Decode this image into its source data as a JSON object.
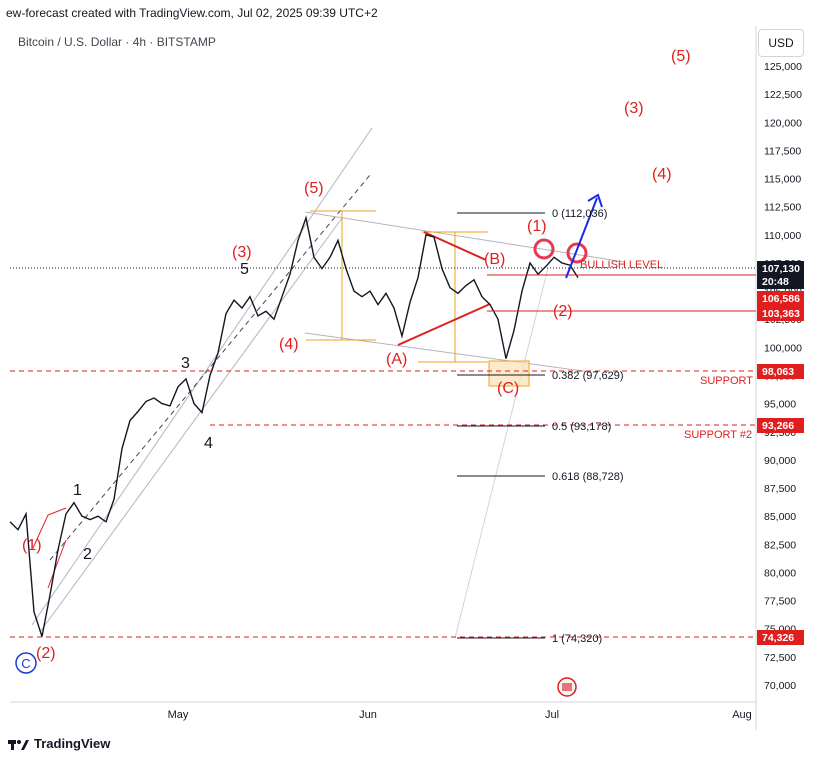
{
  "header": {
    "attribution": "ew-forecast created with TradingView.com, Jul 02, 2025 09:39 UTC+2",
    "title": "Bitcoin / U.S. Dollar · 4h · BITSTAMP",
    "currency": "USD"
  },
  "footer": {
    "brand": "TradingView"
  },
  "chart_data": {
    "type": "line",
    "title": "Bitcoin / U.S. Dollar · 4h · BITSTAMP",
    "ylabel": "USD",
    "ylim": [
      68000,
      127000
    ],
    "y_ticks": [
      "125,000",
      "122,500",
      "120,000",
      "117,500",
      "115,000",
      "112,500",
      "110,000",
      "107,500",
      "105,000",
      "102,500",
      "100,000",
      "97,500",
      "95,000",
      "92,500",
      "90,000",
      "87,500",
      "85,000",
      "82,500",
      "80,000",
      "77,500",
      "75,000",
      "72,500",
      "70,000"
    ],
    "x_ticks": [
      "May",
      "Jun",
      "Jul",
      "Aug"
    ],
    "grid": false,
    "price_path": [
      [
        0,
        84500
      ],
      [
        2,
        83800
      ],
      [
        4,
        85200
      ],
      [
        6,
        76500
      ],
      [
        8,
        74300
      ],
      [
        10,
        78000
      ],
      [
        12,
        82000
      ],
      [
        14,
        85200
      ],
      [
        16,
        86200
      ],
      [
        18,
        85000
      ],
      [
        20,
        84700
      ],
      [
        22,
        85000
      ],
      [
        24,
        84500
      ],
      [
        26,
        86500
      ],
      [
        28,
        91000
      ],
      [
        30,
        93500
      ],
      [
        32,
        94300
      ],
      [
        34,
        95200
      ],
      [
        36,
        95500
      ],
      [
        38,
        95000
      ],
      [
        40,
        94800
      ],
      [
        42,
        96500
      ],
      [
        44,
        97200
      ],
      [
        46,
        95000
      ],
      [
        48,
        94200
      ],
      [
        50,
        97500
      ],
      [
        52,
        99500
      ],
      [
        54,
        103000
      ],
      [
        56,
        104200
      ],
      [
        58,
        103500
      ],
      [
        60,
        104500
      ],
      [
        62,
        102800
      ],
      [
        64,
        103200
      ],
      [
        66,
        102500
      ],
      [
        68,
        104500
      ],
      [
        70,
        106500
      ],
      [
        72,
        109500
      ],
      [
        74,
        111500
      ],
      [
        76,
        108000
      ],
      [
        78,
        107000
      ],
      [
        80,
        108000
      ],
      [
        82,
        109500
      ],
      [
        84,
        107000
      ],
      [
        86,
        105000
      ],
      [
        88,
        104500
      ],
      [
        90,
        105000
      ],
      [
        92,
        103800
      ],
      [
        94,
        104800
      ],
      [
        96,
        103500
      ],
      [
        98,
        101000
      ],
      [
        100,
        104000
      ],
      [
        102,
        106200
      ],
      [
        104,
        110000
      ],
      [
        106,
        109800
      ],
      [
        108,
        107000
      ],
      [
        110,
        105300
      ],
      [
        112,
        104800
      ],
      [
        114,
        105500
      ],
      [
        116,
        106000
      ],
      [
        118,
        104500
      ],
      [
        120,
        103800
      ],
      [
        122,
        102500
      ],
      [
        124,
        99000
      ],
      [
        126,
        101500
      ],
      [
        128,
        105000
      ],
      [
        130,
        107500
      ],
      [
        132,
        106500
      ],
      [
        134,
        107200
      ],
      [
        136,
        108000
      ],
      [
        138,
        107500
      ],
      [
        140,
        107300
      ],
      [
        142,
        106200
      ]
    ],
    "levels": [
      {
        "price": 107130,
        "tag": "107,130",
        "sub": "20:48",
        "color": "#131722"
      },
      {
        "price": 106586,
        "tag": "106,586",
        "color": "#e01e1e"
      },
      {
        "price": 103363,
        "tag": "103,363",
        "color": "#e01e1e"
      },
      {
        "price": 98063,
        "tag": "98,063",
        "color": "#e01e1e",
        "label": "SUPPORT"
      },
      {
        "price": 93266,
        "tag": "93,266",
        "color": "#e01e1e",
        "label": "SUPPORT #2"
      },
      {
        "price": 74326,
        "tag": "74,326",
        "color": "#e01e1e"
      }
    ],
    "fib_levels": [
      {
        "label": "0 (112,036)"
      },
      {
        "label": "0.382 (97,629)"
      },
      {
        "label": "0.5 (93,178)"
      },
      {
        "label": "0.618 (88,728)"
      },
      {
        "label": "1 (74,320)"
      }
    ],
    "annotations": {
      "bullish_level": "BULLISH LEVEL",
      "wave_labels_red": [
        "(1)",
        "(2)",
        "(3)",
        "(4)",
        "(5)",
        "(A)",
        "(B)",
        "(C)",
        "(1)",
        "(2)",
        "(3)",
        "(4)",
        "(5)"
      ],
      "wave_labels_black": [
        "1",
        "2",
        "3",
        "4",
        "5"
      ],
      "circle_label": "C"
    }
  }
}
